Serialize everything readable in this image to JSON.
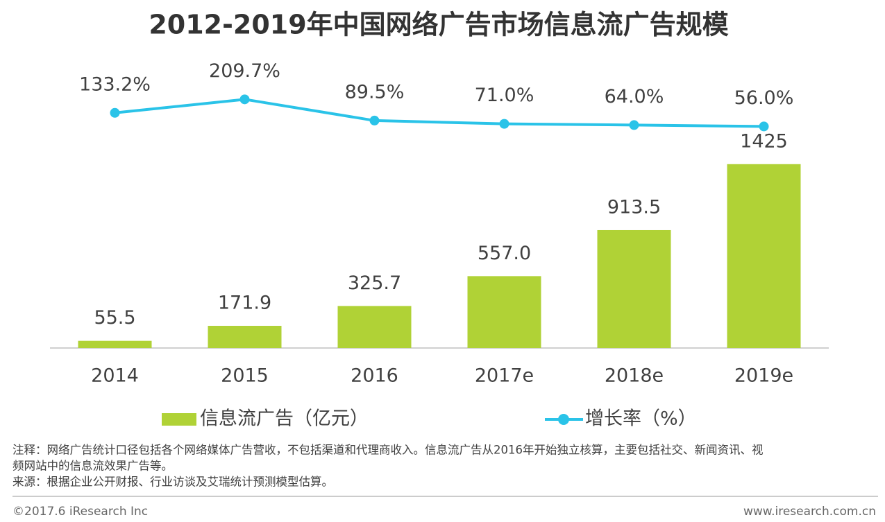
{
  "chart_data": {
    "type": "bar-line",
    "title": "2012-2019年中国网络广告市场信息流广告规模",
    "categories": [
      "2014",
      "2015",
      "2016",
      "2017e",
      "2018e",
      "2019e"
    ],
    "series": [
      {
        "name": "信息流广告（亿元）",
        "type": "bar",
        "color": "#b0d236",
        "values": [
          55.5,
          171.9,
          325.7,
          557.0,
          913.5,
          1425
        ],
        "value_labels": [
          "55.5",
          "171.9",
          "325.7",
          "557.0",
          "913.5",
          "1425"
        ]
      },
      {
        "name": "增长率（%）",
        "type": "line",
        "axis": "y2",
        "color": "#2ac3e8",
        "values": [
          133.2,
          209.7,
          89.5,
          71.0,
          64.0,
          56.0
        ],
        "value_labels": [
          "133.2%",
          "209.7%",
          "89.5%",
          "71.0%",
          "64.0%",
          "56.0%"
        ]
      }
    ],
    "ylim": [
      0,
      2160
    ],
    "y2lim": [
      -1200,
      380
    ],
    "grid": false
  },
  "footer": {
    "note": "注释：网络广告统计口径包括各个网络媒体广告营收，不包括渠道和代理商收入。信息流广告从2016年开始独立核算，主要包括社交、新闻资讯、视",
    "note_cont": "频网站中的信息流效果广告等。",
    "source": "来源：根据企业公开财报、行业访谈及艾瑞统计预测模型估算。",
    "copyright": "©2017.6 iResearch Inc",
    "website": "www.iresearch.com.cn"
  }
}
